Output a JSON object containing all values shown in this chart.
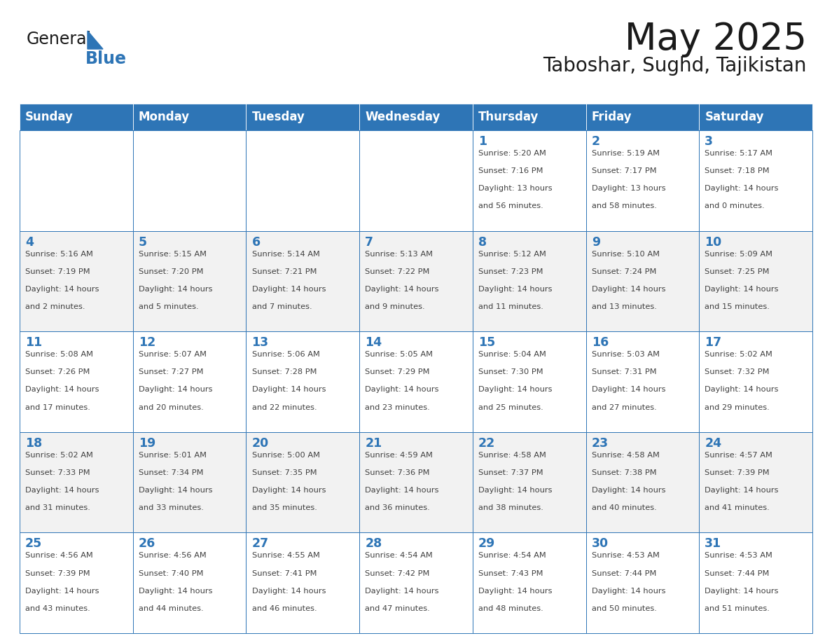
{
  "title": "May 2025",
  "subtitle": "Taboshar, Sughd, Tajikistan",
  "header_bg": "#2E75B6",
  "header_text_color": "#FFFFFF",
  "day_names": [
    "Sunday",
    "Monday",
    "Tuesday",
    "Wednesday",
    "Thursday",
    "Friday",
    "Saturday"
  ],
  "cell_bg_odd": "#F2F2F2",
  "cell_bg_even": "#FFFFFF",
  "cell_border": "#2E75B6",
  "day_num_color": "#2E75B6",
  "info_text_color": "#404040",
  "logo_general_color": "#1a1a1a",
  "logo_blue_color": "#2E75B6",
  "weeks": [
    [
      {
        "day": "",
        "info": ""
      },
      {
        "day": "",
        "info": ""
      },
      {
        "day": "",
        "info": ""
      },
      {
        "day": "",
        "info": ""
      },
      {
        "day": "1",
        "info": "Sunrise: 5:20 AM\nSunset: 7:16 PM\nDaylight: 13 hours\nand 56 minutes."
      },
      {
        "day": "2",
        "info": "Sunrise: 5:19 AM\nSunset: 7:17 PM\nDaylight: 13 hours\nand 58 minutes."
      },
      {
        "day": "3",
        "info": "Sunrise: 5:17 AM\nSunset: 7:18 PM\nDaylight: 14 hours\nand 0 minutes."
      }
    ],
    [
      {
        "day": "4",
        "info": "Sunrise: 5:16 AM\nSunset: 7:19 PM\nDaylight: 14 hours\nand 2 minutes."
      },
      {
        "day": "5",
        "info": "Sunrise: 5:15 AM\nSunset: 7:20 PM\nDaylight: 14 hours\nand 5 minutes."
      },
      {
        "day": "6",
        "info": "Sunrise: 5:14 AM\nSunset: 7:21 PM\nDaylight: 14 hours\nand 7 minutes."
      },
      {
        "day": "7",
        "info": "Sunrise: 5:13 AM\nSunset: 7:22 PM\nDaylight: 14 hours\nand 9 minutes."
      },
      {
        "day": "8",
        "info": "Sunrise: 5:12 AM\nSunset: 7:23 PM\nDaylight: 14 hours\nand 11 minutes."
      },
      {
        "day": "9",
        "info": "Sunrise: 5:10 AM\nSunset: 7:24 PM\nDaylight: 14 hours\nand 13 minutes."
      },
      {
        "day": "10",
        "info": "Sunrise: 5:09 AM\nSunset: 7:25 PM\nDaylight: 14 hours\nand 15 minutes."
      }
    ],
    [
      {
        "day": "11",
        "info": "Sunrise: 5:08 AM\nSunset: 7:26 PM\nDaylight: 14 hours\nand 17 minutes."
      },
      {
        "day": "12",
        "info": "Sunrise: 5:07 AM\nSunset: 7:27 PM\nDaylight: 14 hours\nand 20 minutes."
      },
      {
        "day": "13",
        "info": "Sunrise: 5:06 AM\nSunset: 7:28 PM\nDaylight: 14 hours\nand 22 minutes."
      },
      {
        "day": "14",
        "info": "Sunrise: 5:05 AM\nSunset: 7:29 PM\nDaylight: 14 hours\nand 23 minutes."
      },
      {
        "day": "15",
        "info": "Sunrise: 5:04 AM\nSunset: 7:30 PM\nDaylight: 14 hours\nand 25 minutes."
      },
      {
        "day": "16",
        "info": "Sunrise: 5:03 AM\nSunset: 7:31 PM\nDaylight: 14 hours\nand 27 minutes."
      },
      {
        "day": "17",
        "info": "Sunrise: 5:02 AM\nSunset: 7:32 PM\nDaylight: 14 hours\nand 29 minutes."
      }
    ],
    [
      {
        "day": "18",
        "info": "Sunrise: 5:02 AM\nSunset: 7:33 PM\nDaylight: 14 hours\nand 31 minutes."
      },
      {
        "day": "19",
        "info": "Sunrise: 5:01 AM\nSunset: 7:34 PM\nDaylight: 14 hours\nand 33 minutes."
      },
      {
        "day": "20",
        "info": "Sunrise: 5:00 AM\nSunset: 7:35 PM\nDaylight: 14 hours\nand 35 minutes."
      },
      {
        "day": "21",
        "info": "Sunrise: 4:59 AM\nSunset: 7:36 PM\nDaylight: 14 hours\nand 36 minutes."
      },
      {
        "day": "22",
        "info": "Sunrise: 4:58 AM\nSunset: 7:37 PM\nDaylight: 14 hours\nand 38 minutes."
      },
      {
        "day": "23",
        "info": "Sunrise: 4:58 AM\nSunset: 7:38 PM\nDaylight: 14 hours\nand 40 minutes."
      },
      {
        "day": "24",
        "info": "Sunrise: 4:57 AM\nSunset: 7:39 PM\nDaylight: 14 hours\nand 41 minutes."
      }
    ],
    [
      {
        "day": "25",
        "info": "Sunrise: 4:56 AM\nSunset: 7:39 PM\nDaylight: 14 hours\nand 43 minutes."
      },
      {
        "day": "26",
        "info": "Sunrise: 4:56 AM\nSunset: 7:40 PM\nDaylight: 14 hours\nand 44 minutes."
      },
      {
        "day": "27",
        "info": "Sunrise: 4:55 AM\nSunset: 7:41 PM\nDaylight: 14 hours\nand 46 minutes."
      },
      {
        "day": "28",
        "info": "Sunrise: 4:54 AM\nSunset: 7:42 PM\nDaylight: 14 hours\nand 47 minutes."
      },
      {
        "day": "29",
        "info": "Sunrise: 4:54 AM\nSunset: 7:43 PM\nDaylight: 14 hours\nand 48 minutes."
      },
      {
        "day": "30",
        "info": "Sunrise: 4:53 AM\nSunset: 7:44 PM\nDaylight: 14 hours\nand 50 minutes."
      },
      {
        "day": "31",
        "info": "Sunrise: 4:53 AM\nSunset: 7:44 PM\nDaylight: 14 hours\nand 51 minutes."
      }
    ]
  ]
}
